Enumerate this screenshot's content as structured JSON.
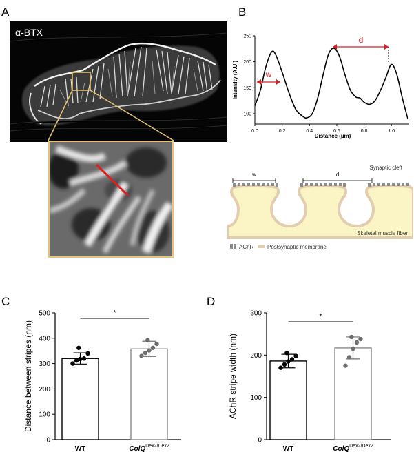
{
  "colors": {
    "stripe_line": "#e02020",
    "inset_border": "#e8c570",
    "membrane": "#e2cdb0",
    "fiber": "#fbf5c6",
    "receptor": "#8c8c8c",
    "dot_wt": "#000000",
    "dot_colq": "#6e6e6e"
  },
  "panel_a": {
    "letter": "A",
    "stain_label": "α-BTX"
  },
  "panel_b": {
    "letter": "B",
    "width_marker": "w",
    "distance_marker": "d",
    "schematic": {
      "w_label": "w",
      "d_label": "d",
      "cleft_label": "Synaptic cleft",
      "fiber_label": "Skeletal muscle fiber",
      "legend_achr": "AChR",
      "legend_membrane": "Postsynaptic membrane"
    }
  },
  "panel_c": {
    "letter": "C"
  },
  "panel_d": {
    "letter": "D"
  },
  "chart_data": [
    {
      "type": "line",
      "title": "",
      "xlabel": "Distance (µm)",
      "ylabel": "Intensity (A.U.)",
      "xlim": [
        0,
        1.13
      ],
      "ylim": [
        80,
        250
      ],
      "xticks": [
        "0.0",
        "0.2",
        "0.4",
        "0.6",
        "0.8",
        "1.0"
      ],
      "yticks": [
        "100",
        "150",
        "200",
        "250"
      ],
      "x": [
        0.0,
        0.04,
        0.08,
        0.12,
        0.15,
        0.2,
        0.25,
        0.3,
        0.35,
        0.38,
        0.42,
        0.46,
        0.5,
        0.54,
        0.58,
        0.62,
        0.66,
        0.7,
        0.74,
        0.77,
        0.8,
        0.84,
        0.88,
        0.92,
        0.96,
        1.0,
        1.04,
        1.08,
        1.12
      ],
      "values": [
        115,
        145,
        190,
        218,
        215,
        180,
        140,
        108,
        95,
        92,
        100,
        130,
        175,
        215,
        226,
        210,
        175,
        145,
        132,
        130,
        122,
        118,
        125,
        145,
        170,
        195,
        175,
        130,
        90
      ]
    },
    {
      "type": "bar",
      "ylabel": "Distance between stripes (nm)",
      "ylim": [
        0,
        500
      ],
      "yticks": [
        "0",
        "100",
        "200",
        "300",
        "400",
        "500"
      ],
      "categories": [
        "WT",
        "ColQ"
      ],
      "category_superscript": [
        "",
        "Dex2/Dex2"
      ],
      "values": [
        320,
        358
      ],
      "sd": [
        22,
        30
      ],
      "points": [
        [
          300,
          312,
          318,
          320,
          340,
          362
        ],
        [
          330,
          342,
          352,
          362,
          378,
          392
        ]
      ],
      "significance": "*"
    },
    {
      "type": "bar",
      "ylabel": "AChR stripe width (nm)",
      "ylim": [
        0,
        300
      ],
      "yticks": [
        "0",
        "100",
        "200",
        "300"
      ],
      "categories": [
        "WT",
        "ColQ"
      ],
      "category_superscript": [
        "",
        "Dex2/Dex2"
      ],
      "values": [
        186,
        217
      ],
      "sd": [
        16,
        26
      ],
      "points": [
        [
          170,
          178,
          185,
          190,
          198,
          205
        ],
        [
          175,
          195,
          215,
          230,
          238,
          243
        ]
      ],
      "significance": "*"
    }
  ]
}
